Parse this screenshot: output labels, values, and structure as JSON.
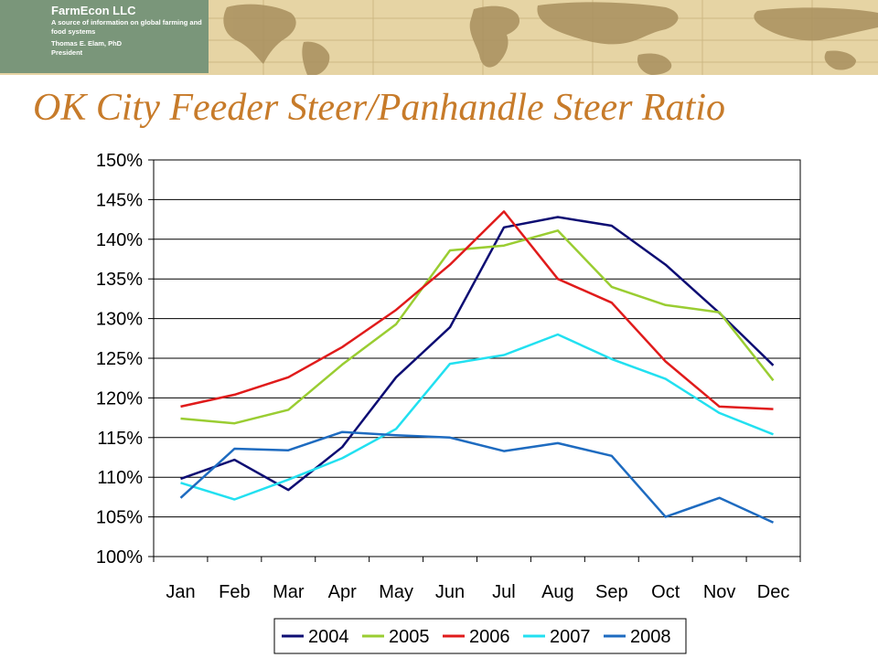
{
  "brand": {
    "name": "FarmEcon LLC",
    "tagline": "A source of information on global farming and food systems",
    "person": "Thomas E. Elam, PhD",
    "role": "President",
    "colors": {
      "box": "#7a967a",
      "band": "#e6d4a4"
    }
  },
  "title": "OK City Feeder Steer/Panhandle Steer Ratio",
  "chart_data": {
    "type": "line",
    "title": "OK City Feeder Steer/Panhandle Steer Ratio",
    "xlabel": "",
    "ylabel": "",
    "categories": [
      "Jan",
      "Feb",
      "Mar",
      "Apr",
      "May",
      "Jun",
      "Jul",
      "Aug",
      "Sep",
      "Oct",
      "Nov",
      "Dec"
    ],
    "ylim": [
      100,
      150
    ],
    "yticks": [
      100,
      105,
      110,
      115,
      120,
      125,
      130,
      135,
      140,
      145,
      150
    ],
    "ytick_labels": [
      "100%",
      "105%",
      "110%",
      "115%",
      "120%",
      "125%",
      "130%",
      "135%",
      "140%",
      "145%",
      "150%"
    ],
    "grid": "horizontal",
    "legend": "bottom",
    "series": [
      {
        "name": "2004",
        "color": "#0d0d73",
        "values": [
          109.8,
          112.2,
          108.4,
          113.8,
          122.6,
          128.9,
          141.5,
          142.8,
          141.7,
          136.8,
          130.7,
          124.1
        ]
      },
      {
        "name": "2005",
        "color": "#9acd32",
        "values": [
          117.4,
          116.8,
          118.5,
          124.2,
          129.3,
          138.6,
          139.2,
          141.1,
          134.0,
          131.7,
          130.8,
          122.2
        ]
      },
      {
        "name": "2006",
        "color": "#e01b1b",
        "values": [
          118.9,
          120.4,
          122.6,
          126.4,
          131.1,
          136.8,
          143.5,
          135.0,
          132.0,
          124.6,
          118.9,
          118.6
        ]
      },
      {
        "name": "2007",
        "color": "#22e0f0",
        "values": [
          109.3,
          107.2,
          109.7,
          112.4,
          116.1,
          124.3,
          125.4,
          128.0,
          124.9,
          122.4,
          118.1,
          115.4
        ]
      },
      {
        "name": "2008",
        "color": "#1e6bc0",
        "values": [
          107.4,
          113.6,
          113.4,
          115.7,
          115.3,
          115.0,
          113.3,
          114.3,
          112.7,
          105.0,
          107.4,
          104.3
        ]
      }
    ]
  }
}
